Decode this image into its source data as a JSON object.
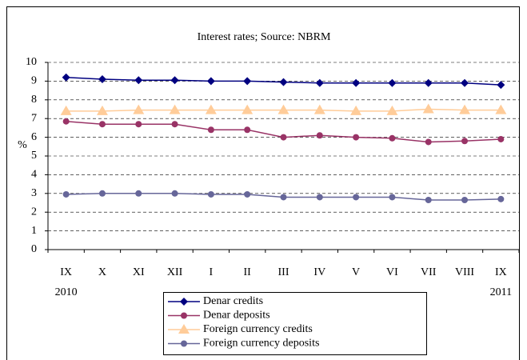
{
  "chart_data": {
    "type": "line",
    "title": "Interest rates; Source: NBRM",
    "y_label": "%",
    "categories": [
      "IX",
      "X",
      "XI",
      "XII",
      "I",
      "II",
      "III",
      "IV",
      "V",
      "VI",
      "VII",
      "VIII",
      "IX"
    ],
    "annotations": [
      "2010",
      "2011"
    ],
    "ylim": [
      0,
      10
    ],
    "yticks": [
      0,
      1,
      2,
      3,
      4,
      5,
      6,
      7,
      8,
      9,
      10
    ],
    "grid": true,
    "legend": "bottom",
    "series": [
      {
        "name": "Denar credits",
        "color": "#000080",
        "marker": "diamond",
        "values": [
          9.2,
          9.1,
          9.05,
          9.05,
          9.0,
          9.0,
          8.95,
          8.9,
          8.9,
          8.9,
          8.9,
          8.9,
          8.8
        ]
      },
      {
        "name": "Denar deposits",
        "color": "#993366",
        "marker": "circle",
        "values": [
          6.85,
          6.7,
          6.7,
          6.7,
          6.4,
          6.4,
          6.0,
          6.1,
          6.0,
          5.95,
          5.75,
          5.8,
          5.9
        ]
      },
      {
        "name": "Foreign currency credits",
        "color": "#ffcc99",
        "marker": "triangle",
        "values": [
          7.4,
          7.4,
          7.45,
          7.45,
          7.45,
          7.45,
          7.45,
          7.45,
          7.4,
          7.4,
          7.5,
          7.45,
          7.45
        ]
      },
      {
        "name": "Foreign currency deposits",
        "color": "#666699",
        "marker": "circle",
        "values": [
          2.95,
          3.0,
          3.0,
          3.0,
          2.95,
          2.95,
          2.8,
          2.8,
          2.8,
          2.8,
          2.65,
          2.65,
          2.7
        ]
      }
    ]
  }
}
